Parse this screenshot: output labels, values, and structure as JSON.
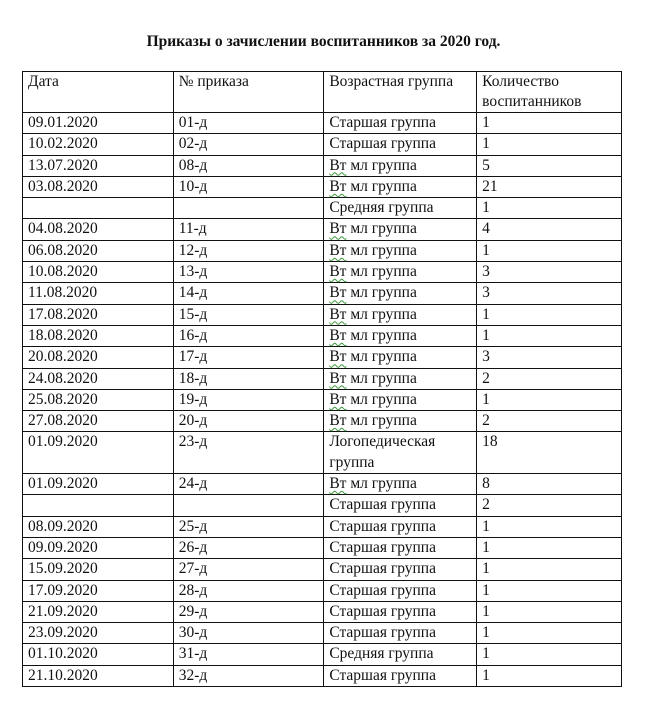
{
  "title": "Приказы о зачислении воспитанников за 2020 год.",
  "table": {
    "headers": [
      "Дата",
      "№ приказа",
      "Возрастная группа",
      "Количество воспитанников"
    ],
    "rows": [
      [
        "09.01.2020",
        "01-д",
        "Старшая группа",
        "1"
      ],
      [
        "10.02.2020",
        "02-д",
        "Старшая группа",
        "1"
      ],
      [
        "13.07.2020",
        "08-д",
        "Вт мл группа",
        "5"
      ],
      [
        "03.08.2020",
        "10-д",
        "Вт мл группа",
        "21"
      ],
      [
        "",
        "",
        "Средняя группа",
        "1"
      ],
      [
        "04.08.2020",
        "11-д",
        "Вт мл группа",
        "4"
      ],
      [
        "06.08.2020",
        "12-д",
        "Вт мл группа",
        "1"
      ],
      [
        "10.08.2020",
        "13-д",
        "Вт мл группа",
        "3"
      ],
      [
        "11.08.2020",
        "14-д",
        "Вт мл группа",
        "3"
      ],
      [
        "17.08.2020",
        "15-д",
        "Вт мл группа",
        "1"
      ],
      [
        "18.08.2020",
        "16-д",
        "Вт мл группа",
        "1"
      ],
      [
        "20.08.2020",
        "17-д",
        "Вт мл группа",
        "3"
      ],
      [
        "24.08.2020",
        "18-д",
        "Вт мл группа",
        "2"
      ],
      [
        "25.08.2020",
        "19-д",
        "Вт мл группа",
        "1"
      ],
      [
        "27.08.2020",
        "20-д",
        "Вт мл группа",
        "2"
      ],
      [
        "01.09.2020",
        "23-д",
        "Логопедическая группа",
        "18"
      ],
      [
        "01.09.2020",
        "24-д",
        "Вт мл группа",
        "8"
      ],
      [
        "",
        "",
        "Старшая группа",
        "2"
      ],
      [
        "08.09.2020",
        "25-д",
        "Старшая группа",
        "1"
      ],
      [
        "09.09.2020",
        "26-д",
        "Старшая группа",
        "1"
      ],
      [
        "15.09.2020",
        "27-д",
        "Старшая группа",
        "1"
      ],
      [
        "17.09.2020",
        "28-д",
        "Старшая группа",
        "1"
      ],
      [
        "21.09.2020",
        "29-д",
        "Старшая группа",
        "1"
      ],
      [
        "23.09.2020",
        "30-д",
        "Старшая группа",
        "1"
      ],
      [
        "01.10.2020",
        "31-д",
        "Средняя группа",
        "1"
      ],
      [
        "21.10.2020",
        "32-д",
        "Старшая группа",
        "1"
      ]
    ]
  }
}
